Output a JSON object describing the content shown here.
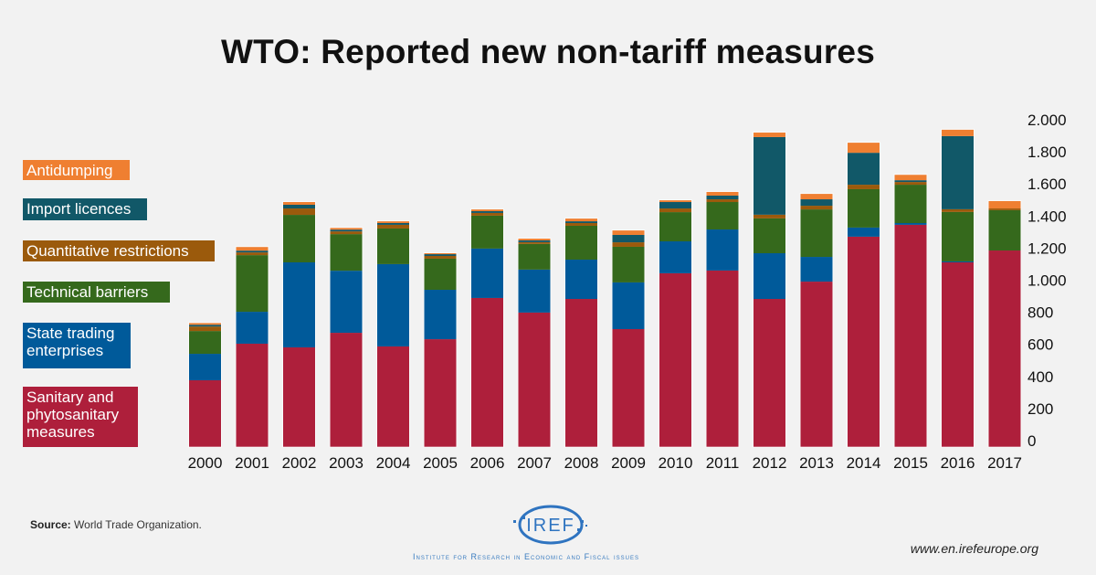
{
  "chart_data": {
    "type": "bar",
    "stacked": true,
    "title": "WTO: Reported new non-tariff measures",
    "xlabel": "",
    "ylabel": "",
    "ylim": [
      0,
      2000
    ],
    "yticks": [
      0,
      200,
      400,
      600,
      800,
      1000,
      1200,
      1400,
      1600,
      1800,
      2000
    ],
    "ytick_labels": [
      "0",
      "200",
      "400",
      "600",
      "800",
      "1.000",
      "1.200",
      "1.400",
      "1.600",
      "1.800",
      "2.000"
    ],
    "y_axis_side": "right",
    "grid": false,
    "legend_position": "left",
    "categories": [
      "2000",
      "2001",
      "2002",
      "2003",
      "2004",
      "2005",
      "2006",
      "2007",
      "2008",
      "2009",
      "2010",
      "2011",
      "2012",
      "2013",
      "2014",
      "2015",
      "2016",
      "2017"
    ],
    "series": [
      {
        "name": "Sanitary and phytosanitary measures",
        "color": "#ae1f3b",
        "values": [
          416,
          644,
          621,
          712,
          627,
          672,
          929,
          838,
          923,
          735,
          1083,
          1100,
          923,
          1031,
          1311,
          1385,
          1151,
          1225
        ]
      },
      {
        "name": "State trading enterprises",
        "color": "#005a9a",
        "values": [
          165,
          199,
          530,
          387,
          513,
          308,
          308,
          268,
          245,
          291,
          199,
          256,
          285,
          154,
          57,
          11,
          6,
          0
        ]
      },
      {
        "name": "Technical barriers",
        "color": "#35691c",
        "values": [
          142,
          353,
          296,
          228,
          222,
          194,
          205,
          160,
          211,
          222,
          182,
          171,
          217,
          296,
          239,
          239,
          308,
          251
        ]
      },
      {
        "name": "Quantitative restrictions",
        "color": "#9b5a0c",
        "values": [
          28,
          17,
          40,
          17,
          23,
          17,
          17,
          11,
          17,
          28,
          23,
          17,
          23,
          23,
          28,
          17,
          17,
          11
        ]
      },
      {
        "name": "Import licences",
        "color": "#115868",
        "values": [
          11,
          11,
          23,
          11,
          11,
          11,
          11,
          11,
          11,
          46,
          40,
          23,
          484,
          40,
          199,
          11,
          456,
          0
        ]
      },
      {
        "name": "Antidumping",
        "color": "#ef7f31",
        "values": [
          11,
          23,
          17,
          11,
          11,
          6,
          11,
          11,
          17,
          28,
          11,
          23,
          28,
          34,
          63,
          34,
          40,
          46
        ]
      }
    ]
  },
  "legend": [
    {
      "label": "Antidumping",
      "color": "#ef7f31"
    },
    {
      "label": "Import licences",
      "color": "#115868"
    },
    {
      "label": "Quantitative restrictions",
      "color": "#9b5a0c"
    },
    {
      "label": "Technical barriers",
      "color": "#35691c"
    },
    {
      "label": "State trading enterprises",
      "color": "#005a9a"
    },
    {
      "label": "Sanitary and phytosanitary measures",
      "color": "#ae1f3b"
    }
  ],
  "footer": {
    "source_label": "Source:",
    "source_text": "World Trade Organization.",
    "logo_text": "IREF",
    "institute": "Institute for Research in Economic and Fiscal issues",
    "website": "www.en.irefeurope.org"
  }
}
